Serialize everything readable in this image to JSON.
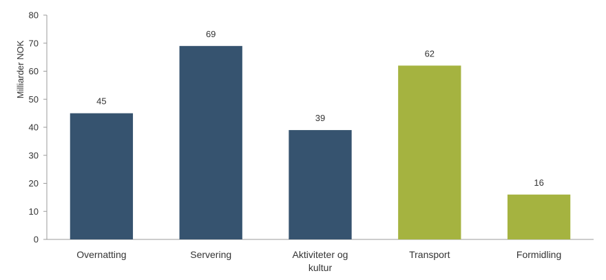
{
  "chart_data": {
    "type": "bar",
    "title": "",
    "xlabel": "",
    "ylabel": "Milliarder NOK",
    "ylim": [
      0,
      80
    ],
    "yticks": [
      0,
      10,
      20,
      30,
      40,
      50,
      60,
      70,
      80
    ],
    "grid": false,
    "categories": [
      [
        "Overnatting"
      ],
      [
        "Servering"
      ],
      [
        "Aktiviteter og",
        "kultur"
      ],
      [
        "Transport"
      ],
      [
        "Formidling"
      ]
    ],
    "values": [
      45,
      69,
      39,
      62,
      16
    ],
    "data_labels": [
      "45",
      "69",
      "39",
      "62",
      "16"
    ],
    "colors": [
      "#36536f",
      "#36536f",
      "#36536f",
      "#a5b340",
      "#a5b340"
    ]
  }
}
